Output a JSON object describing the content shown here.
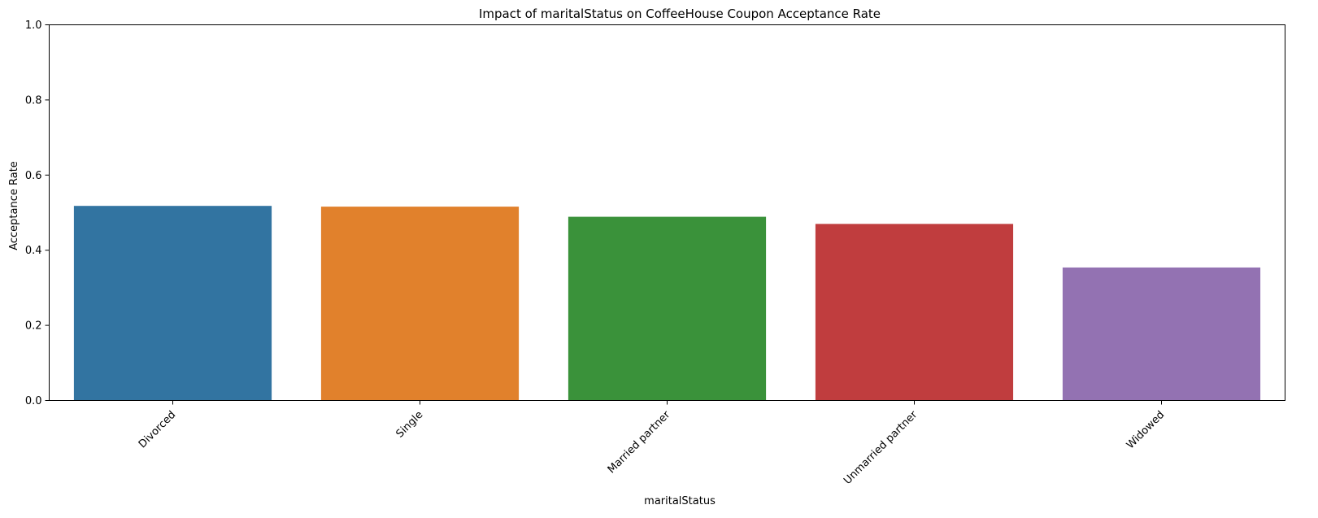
{
  "chart_data": {
    "type": "bar",
    "title": "Impact of maritalStatus on CoffeeHouse Coupon Acceptance Rate",
    "xlabel": "maritalStatus",
    "ylabel": "Acceptance Rate",
    "categories": [
      "Divorced",
      "Single",
      "Married partner",
      "Unmarried partner",
      "Widowed"
    ],
    "values": [
      0.518,
      0.516,
      0.489,
      0.47,
      0.354
    ],
    "colors": [
      "#3274a1",
      "#e1812c",
      "#3a923a",
      "#c03d3e",
      "#9372b2"
    ],
    "ylim": [
      0,
      1
    ],
    "yticks": [
      "0.0",
      "0.2",
      "0.4",
      "0.6",
      "0.8",
      "1.0"
    ],
    "grid": false,
    "legend": "none"
  }
}
